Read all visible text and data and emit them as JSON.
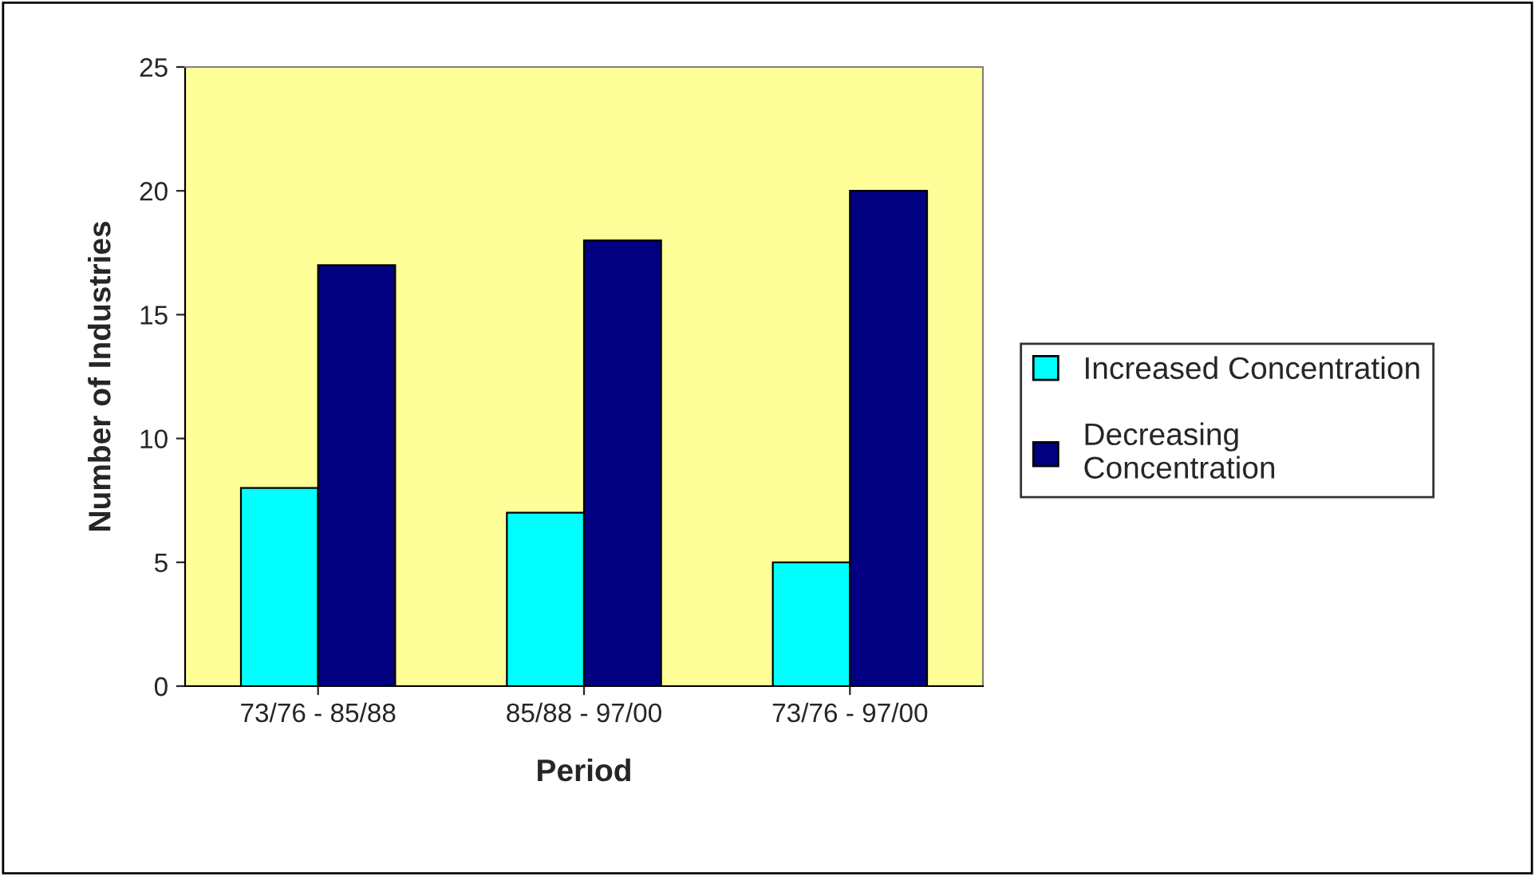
{
  "chart_data": {
    "type": "bar",
    "xlabel": "Period",
    "ylabel": "Number of Industries",
    "categories": [
      "73/76 - 85/88",
      "85/88 - 97/00",
      "73/76 - 97/00"
    ],
    "series": [
      {
        "name": "Increased Concentration",
        "color": "#00ffff",
        "values": [
          8,
          7,
          5
        ]
      },
      {
        "name": "Decreasing\nConcentration",
        "color": "#000080",
        "values": [
          17,
          18,
          20
        ]
      }
    ],
    "ylim": [
      0,
      25
    ],
    "yticks": [
      0,
      5,
      10,
      15,
      20,
      25
    ],
    "grid": false,
    "legend": "right"
  }
}
